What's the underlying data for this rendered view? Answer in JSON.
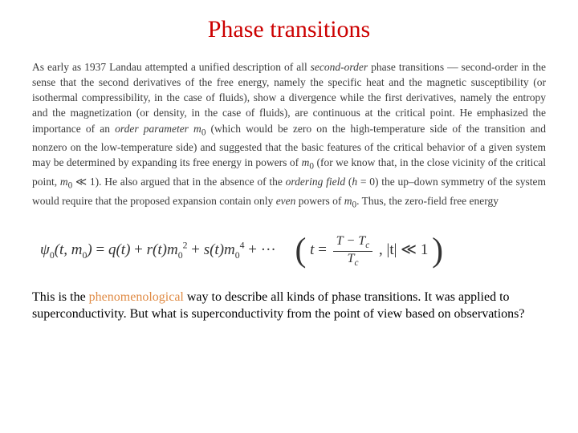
{
  "title": {
    "text": "Phase transitions",
    "color": "#cc0000",
    "fontsize": 30
  },
  "paragraph": {
    "color": "#3a3a3a",
    "fontsize": 13.5,
    "html": "As early as 1937 Landau attempted a unified description of all <em>second-order</em> phase transitions — second-order in the sense that the second derivatives of the free energy, namely the specific heat and the magnetic susceptibility (or isothermal compressibility, in the case of fluids), show a divergence while the first derivatives, namely the entropy and the magnetization (or density, in the case of fluids), are continuous at the critical point. He emphasized the importance of an <em>order parameter m</em><sub>0</sub> (which would be zero on the high-temperature side of the transition and nonzero on the low-temperature side) and suggested that the basic features of the critical behavior of a given system may be determined by expanding its free energy in powers of <em>m</em><sub>0</sub> (for we know that, in the close vicinity of the critical point, <em>m</em><sub>0</sub> ≪ 1). He also argued that in the absence of the <em>ordering field</em> (<em>h</em> = 0) the up–down symmetry of the system would require that the proposed expansion contain only <em>even</em> powers of <em>m</em><sub>0</sub>. Thus, the zero-field free energy"
  },
  "equation": {
    "main": "ψ<span class='sub'>0</span>(t, m<span class='sub'>0</span>) <span class='upright'>=</span> q(t) <span class='upright'>+</span> r(t)m<span class='sub'>0</span><span class='sup'>2</span> <span class='upright'>+</span> s(t)m<span class='sub'>0</span><span class='sup'>4</span> <span class='upright'>+ &middot;&middot;&middot;</span>",
    "side_num": "T − T<span style='font-size:0.7em;vertical-align:sub;font-style:italic'>c</span>",
    "side_den": "T<span style='font-size:0.7em;vertical-align:sub;font-style:italic'>c</span>",
    "side_suffix": ", |t| ≪ 1",
    "fontsize": 19
  },
  "footer": {
    "fontsize": 16,
    "highlight_color": "#e08b45",
    "html": "This is the <span style='color:#e08b45'>phenomenological</span> way to describe all kinds of phase transitions. It was applied to superconductivity. But what is superconductivity from the point of view based on observations?"
  },
  "background_color": "#ffffff"
}
